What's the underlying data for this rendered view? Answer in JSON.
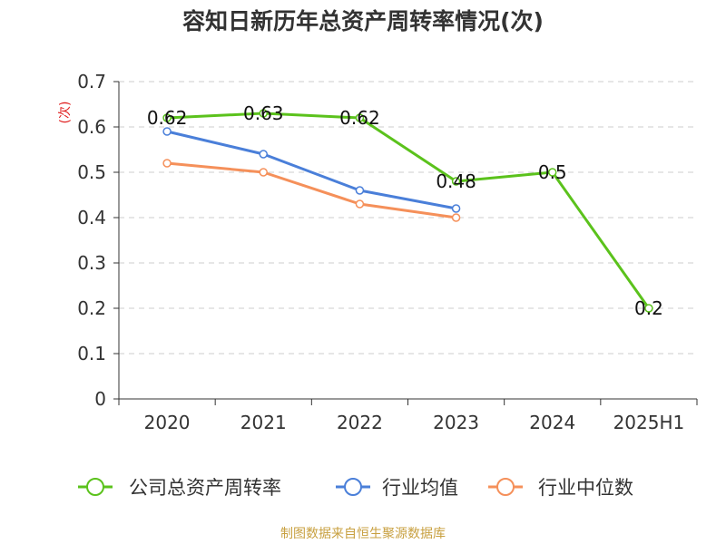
{
  "title": "容知日新历年总资产周转率情况(次)",
  "source_note": "制图数据来自恒生聚源数据库",
  "chart_data": {
    "type": "line",
    "title": "容知日新历年总资产周转率情况(次)",
    "ylabel": "(次)",
    "xlabel": "",
    "ylim": [
      0,
      0.7
    ],
    "yticks": [
      "0",
      "0.1",
      "0.2",
      "0.3",
      "0.4",
      "0.5",
      "0.6",
      "0.7"
    ],
    "categories": [
      "2020",
      "2021",
      "2022",
      "2023",
      "2024",
      "2025H1"
    ],
    "grid": true,
    "legend_position": "bottom",
    "series": [
      {
        "name": "公司总资产周转率",
        "color": "#5bc21c",
        "values": [
          0.62,
          0.63,
          0.62,
          0.48,
          0.5,
          0.2
        ],
        "labels": [
          "0.62",
          "0.63",
          "0.62",
          "0.48",
          "0.5",
          "0.2"
        ]
      },
      {
        "name": "行业均值",
        "color": "#4a7fd9",
        "values": [
          0.59,
          0.54,
          0.46,
          0.42,
          null,
          null
        ]
      },
      {
        "name": "行业中位数",
        "color": "#f5905a",
        "values": [
          0.52,
          0.5,
          0.43,
          0.4,
          null,
          null
        ]
      }
    ]
  }
}
